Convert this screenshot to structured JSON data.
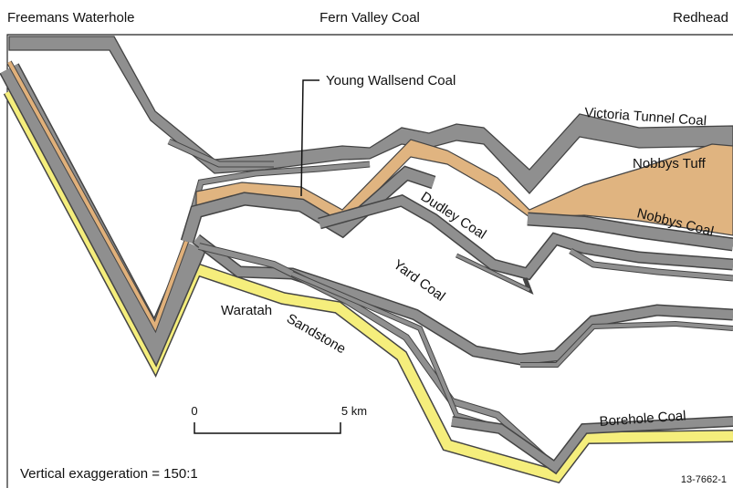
{
  "locations": [
    "Freemans Waterhole",
    "Fern Valley Coal",
    "Redhead"
  ],
  "units": {
    "young_wallsend": "Young Wallsend Coal",
    "victoria_tunnel": "Victoria Tunnel Coal",
    "nobbys_tuff": "Nobbys Tuff",
    "nobbys_coal": "Nobbys Coal",
    "dudley": "Dudley Coal",
    "yard": "Yard Coal",
    "waratah": [
      "Waratah",
      "Sandstone"
    ],
    "borehole": "Borehole Coal"
  },
  "scale_bar": {
    "start": "0",
    "end": "5 km"
  },
  "note": "Vertical exaggeration = 150:1",
  "figure_id": "13-7662-1"
}
